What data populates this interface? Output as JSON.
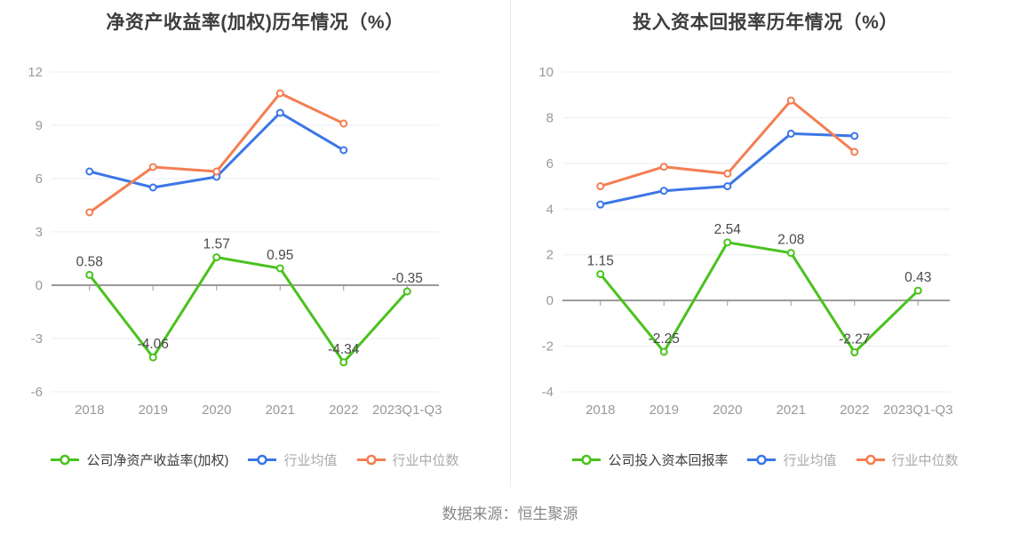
{
  "source_text": "数据来源：恒生聚源",
  "colors": {
    "company_series": "#4ac21e",
    "industry_avg_series": "#3c76e6",
    "industry_median_series": "#f47e52",
    "axis_line": "#999999",
    "gridline": "#e8edf4",
    "tick_text": "#999999",
    "data_label_text": "#4a4a4a",
    "title_text": "#3d3d3d",
    "legend_active_text": "#3d3d3d",
    "legend_inactive_text": "#aaaaaa",
    "source_text": "#888888",
    "divider": "#eaeaea",
    "background": "#ffffff",
    "marker_fill": "#ffffff"
  },
  "chart_data": [
    {
      "type": "line",
      "title": "净资产收益率(加权)历年情况（%）",
      "categories": [
        "2018",
        "2019",
        "2020",
        "2021",
        "2022",
        "2023Q1-Q3"
      ],
      "xlabel": "",
      "ylabel": "",
      "ylim": [
        -6,
        12
      ],
      "yticks": [
        12,
        9,
        6,
        3,
        0,
        -3,
        -6
      ],
      "grid": true,
      "legend_position": "bottom",
      "series": [
        {
          "name": "公司净资产收益率(加权)",
          "color": "#4ac21e",
          "show_labels": true,
          "values": [
            0.58,
            -4.06,
            1.57,
            0.95,
            -4.34,
            -0.35
          ]
        },
        {
          "name": "行业均值",
          "color": "#3c76e6",
          "show_labels": false,
          "values": [
            6.4,
            5.5,
            6.1,
            9.7,
            7.6,
            null
          ]
        },
        {
          "name": "行业中位数",
          "color": "#f47e52",
          "show_labels": false,
          "values": [
            4.1,
            6.65,
            6.4,
            10.8,
            9.1,
            null
          ]
        }
      ]
    },
    {
      "type": "line",
      "title": "投入资本回报率历年情况（%）",
      "categories": [
        "2018",
        "2019",
        "2020",
        "2021",
        "2022",
        "2023Q1-Q3"
      ],
      "xlabel": "",
      "ylabel": "",
      "ylim": [
        -4,
        10
      ],
      "yticks": [
        10,
        8,
        6,
        4,
        2,
        0,
        -2,
        -4
      ],
      "grid": true,
      "legend_position": "bottom",
      "series": [
        {
          "name": "公司投入资本回报率",
          "color": "#4ac21e",
          "show_labels": true,
          "values": [
            1.15,
            -2.25,
            2.54,
            2.08,
            -2.27,
            0.43
          ]
        },
        {
          "name": "行业均值",
          "color": "#3c76e6",
          "show_labels": false,
          "values": [
            4.2,
            4.8,
            5.0,
            7.3,
            7.2,
            null
          ]
        },
        {
          "name": "行业中位数",
          "color": "#f47e52",
          "show_labels": false,
          "values": [
            5.0,
            5.85,
            5.55,
            8.75,
            6.5,
            null
          ]
        }
      ]
    }
  ]
}
